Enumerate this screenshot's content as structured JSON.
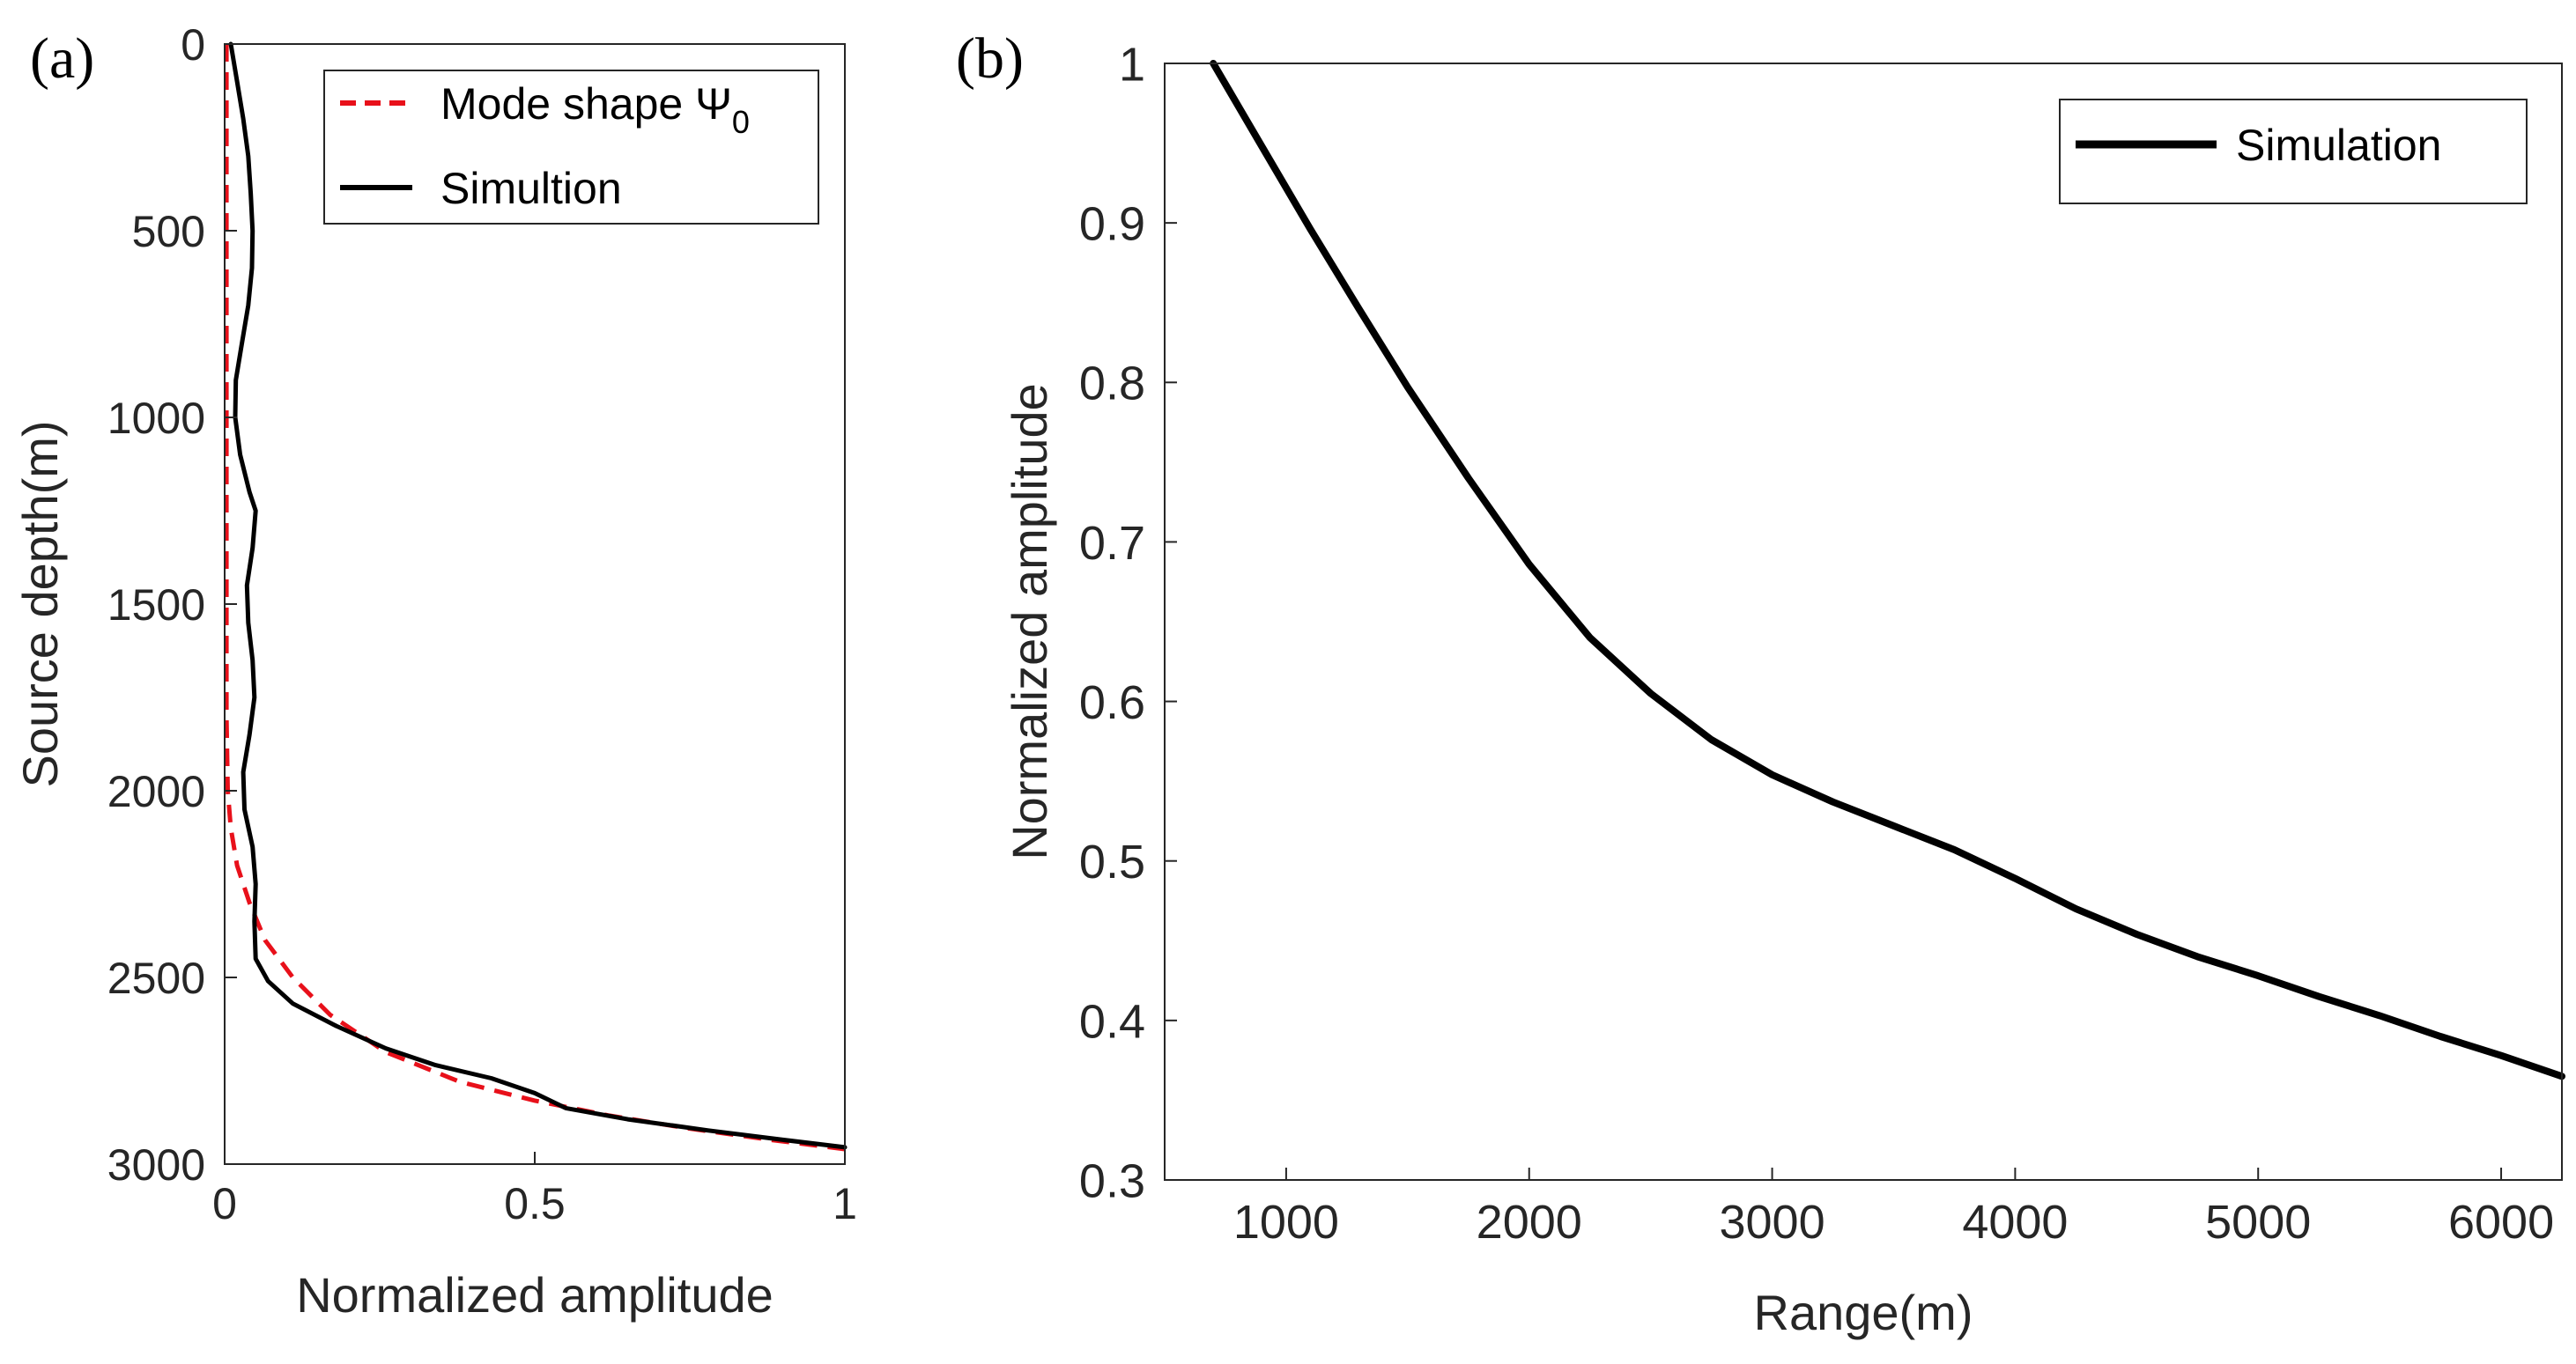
{
  "chart_data": [
    {
      "panel": "(a)",
      "type": "line",
      "xlabel": "Normalized amplitude",
      "ylabel": "Source depth(m)",
      "xlim": [
        0,
        1
      ],
      "ylim": [
        0,
        3000
      ],
      "y_reversed": true,
      "xticks": [
        0,
        0.5,
        1
      ],
      "xtick_labels": [
        "0",
        "0.5",
        "1"
      ],
      "yticks": [
        0,
        500,
        1000,
        1500,
        2000,
        2500,
        3000
      ],
      "ytick_labels": [
        "0",
        "500",
        "1000",
        "1500",
        "2000",
        "2500",
        "3000"
      ],
      "legend_position": "top-right",
      "series": [
        {
          "name": "Mode shape Ψ",
          "name_subscript": "0",
          "color": "#e8101a",
          "style": "dashed",
          "points": [
            [
              0.003,
              0
            ],
            [
              0.003,
              300
            ],
            [
              0.003,
              600
            ],
            [
              0.003,
              900
            ],
            [
              0.003,
              1200
            ],
            [
              0.003,
              1500
            ],
            [
              0.003,
              1800
            ],
            [
              0.005,
              2000
            ],
            [
              0.01,
              2100
            ],
            [
              0.02,
              2200
            ],
            [
              0.04,
              2300
            ],
            [
              0.065,
              2400
            ],
            [
              0.11,
              2500
            ],
            [
              0.17,
              2600
            ],
            [
              0.26,
              2700
            ],
            [
              0.38,
              2780
            ],
            [
              0.5,
              2830
            ],
            [
              0.62,
              2870
            ],
            [
              0.75,
              2905
            ],
            [
              0.88,
              2935
            ],
            [
              1.0,
              2960
            ]
          ]
        },
        {
          "name": "Simultion",
          "color": "#000000",
          "style": "solid",
          "points": [
            [
              0.01,
              0
            ],
            [
              0.02,
              100
            ],
            [
              0.03,
              200
            ],
            [
              0.038,
              300
            ],
            [
              0.042,
              400
            ],
            [
              0.045,
              500
            ],
            [
              0.044,
              600
            ],
            [
              0.038,
              700
            ],
            [
              0.028,
              800
            ],
            [
              0.018,
              900
            ],
            [
              0.017,
              1000
            ],
            [
              0.025,
              1100
            ],
            [
              0.04,
              1200
            ],
            [
              0.05,
              1250
            ],
            [
              0.045,
              1350
            ],
            [
              0.036,
              1450
            ],
            [
              0.038,
              1550
            ],
            [
              0.045,
              1650
            ],
            [
              0.048,
              1750
            ],
            [
              0.04,
              1850
            ],
            [
              0.03,
              1950
            ],
            [
              0.032,
              2050
            ],
            [
              0.045,
              2150
            ],
            [
              0.05,
              2250
            ],
            [
              0.048,
              2350
            ],
            [
              0.05,
              2450
            ],
            [
              0.07,
              2510
            ],
            [
              0.11,
              2570
            ],
            [
              0.18,
              2630
            ],
            [
              0.26,
              2690
            ],
            [
              0.34,
              2735
            ],
            [
              0.43,
              2770
            ],
            [
              0.5,
              2810
            ],
            [
              0.55,
              2850
            ],
            [
              0.65,
              2880
            ],
            [
              0.78,
              2910
            ],
            [
              0.9,
              2935
            ],
            [
              1.0,
              2955
            ]
          ]
        }
      ]
    },
    {
      "panel": "(b)",
      "type": "line",
      "xlabel": "Range(m)",
      "ylabel": "Normalized amplitude",
      "xlim": [
        500,
        6250
      ],
      "ylim": [
        0.3,
        1
      ],
      "xticks": [
        1000,
        2000,
        3000,
        4000,
        5000,
        6000
      ],
      "xtick_labels": [
        "1000",
        "2000",
        "3000",
        "4000",
        "5000",
        "6000"
      ],
      "yticks": [
        0.3,
        0.4,
        0.5,
        0.6,
        0.7,
        0.8,
        0.9,
        1.0
      ],
      "ytick_labels": [
        "0.3",
        "0.4",
        "0.5",
        "0.6",
        "0.7",
        "0.8",
        "0.9",
        "1"
      ],
      "legend_position": "top-right",
      "series": [
        {
          "name": "Simulation",
          "color": "#000000",
          "style": "solid",
          "points": [
            [
              700,
              1.0
            ],
            [
              900,
              0.948
            ],
            [
              1100,
              0.896
            ],
            [
              1300,
              0.846
            ],
            [
              1500,
              0.797
            ],
            [
              1750,
              0.74
            ],
            [
              2000,
              0.686
            ],
            [
              2250,
              0.64
            ],
            [
              2500,
              0.605
            ],
            [
              2750,
              0.576
            ],
            [
              3000,
              0.554
            ],
            [
              3250,
              0.537
            ],
            [
              3500,
              0.522
            ],
            [
              3750,
              0.507
            ],
            [
              4000,
              0.489
            ],
            [
              4250,
              0.47
            ],
            [
              4500,
              0.454
            ],
            [
              4750,
              0.44
            ],
            [
              5000,
              0.428
            ],
            [
              5250,
              0.415
            ],
            [
              5500,
              0.403
            ],
            [
              5750,
              0.39
            ],
            [
              6000,
              0.378
            ],
            [
              6250,
              0.365
            ]
          ]
        }
      ]
    }
  ]
}
